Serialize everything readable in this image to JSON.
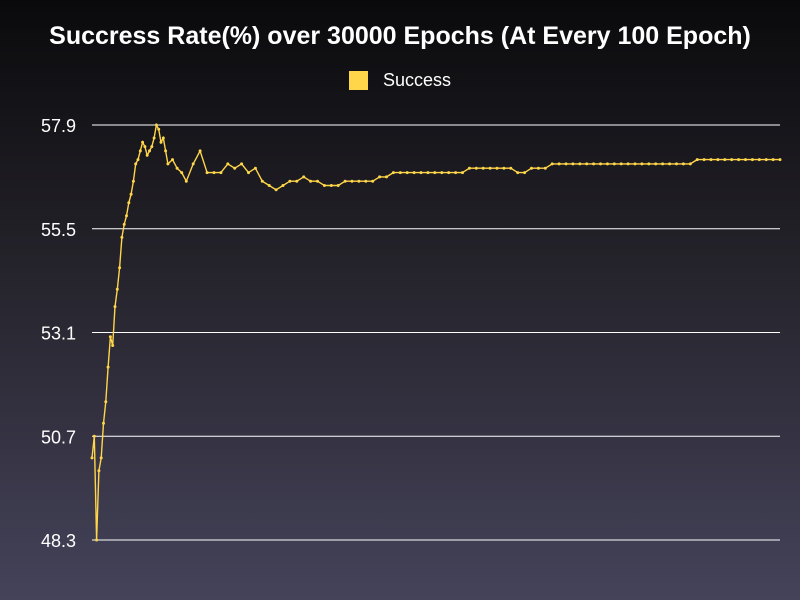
{
  "chart_data": {
    "type": "line",
    "title": "Succress Rate(%) over 30000 Epochs (At Every 100 Epoch)",
    "xlabel": "",
    "ylabel": "",
    "ylim": [
      48.3,
      57.9
    ],
    "yticks": [
      "57.9",
      "55.5",
      "53.1",
      "50.7",
      "48.3"
    ],
    "grid": true,
    "legend_position": "top-center",
    "series": [
      {
        "name": "Success",
        "color": "#ffd54a",
        "x": [
          100,
          200,
          300,
          400,
          500,
          600,
          700,
          800,
          900,
          1000,
          1100,
          1200,
          1300,
          1400,
          1500,
          1600,
          1700,
          1800,
          1900,
          2000,
          2100,
          2200,
          2300,
          2400,
          2500,
          2600,
          2700,
          2800,
          2900,
          3000,
          3100,
          3200,
          3300,
          3400,
          3600,
          3800,
          4000,
          4200,
          4500,
          4800,
          5100,
          5400,
          5700,
          6000,
          6300,
          6600,
          6900,
          7200,
          7500,
          7800,
          8100,
          8400,
          8700,
          9000,
          9300,
          9600,
          9900,
          10200,
          10500,
          10800,
          11100,
          11400,
          11700,
          12000,
          12300,
          12600,
          12900,
          13200,
          13500,
          13800,
          14100,
          14400,
          14700,
          15000,
          15300,
          15600,
          15900,
          16200,
          16500,
          16800,
          17100,
          17400,
          17700,
          18000,
          18300,
          18600,
          18900,
          19200,
          19500,
          19800,
          20100,
          20400,
          20700,
          21000,
          21300,
          21600,
          21900,
          22200,
          22500,
          22800,
          23100,
          23400,
          23700,
          24000,
          24300,
          24600,
          24900,
          25200,
          25500,
          25800,
          26100,
          26400,
          26700,
          27000,
          27300,
          27600,
          27900,
          28200,
          28500,
          28800,
          29100,
          29400,
          29700,
          30000
        ],
        "values": [
          50.2,
          50.7,
          48.3,
          49.9,
          50.2,
          51.0,
          51.5,
          52.3,
          53.0,
          52.8,
          53.7,
          54.1,
          54.6,
          55.3,
          55.6,
          55.8,
          56.1,
          56.3,
          56.6,
          57.0,
          57.1,
          57.3,
          57.5,
          57.4,
          57.2,
          57.3,
          57.4,
          57.6,
          57.9,
          57.8,
          57.5,
          57.6,
          57.3,
          57.0,
          57.1,
          56.9,
          56.8,
          56.6,
          57.0,
          57.3,
          56.8,
          56.8,
          56.8,
          57.0,
          56.9,
          57.0,
          56.8,
          56.9,
          56.6,
          56.5,
          56.4,
          56.5,
          56.6,
          56.6,
          56.7,
          56.6,
          56.6,
          56.5,
          56.5,
          56.5,
          56.6,
          56.6,
          56.6,
          56.6,
          56.6,
          56.7,
          56.7,
          56.8,
          56.8,
          56.8,
          56.8,
          56.8,
          56.8,
          56.8,
          56.8,
          56.8,
          56.8,
          56.8,
          56.9,
          56.9,
          56.9,
          56.9,
          56.9,
          56.9,
          56.9,
          56.8,
          56.8,
          56.9,
          56.9,
          56.9,
          57.0,
          57.0,
          57.0,
          57.0,
          57.0,
          57.0,
          57.0,
          57.0,
          57.0,
          57.0,
          57.0,
          57.0,
          57.0,
          57.0,
          57.0,
          57.0,
          57.0,
          57.0,
          57.0,
          57.0,
          57.0,
          57.1,
          57.1,
          57.1,
          57.1,
          57.1,
          57.1,
          57.1,
          57.1,
          57.1,
          57.1,
          57.1,
          57.1,
          57.1
        ]
      }
    ]
  }
}
